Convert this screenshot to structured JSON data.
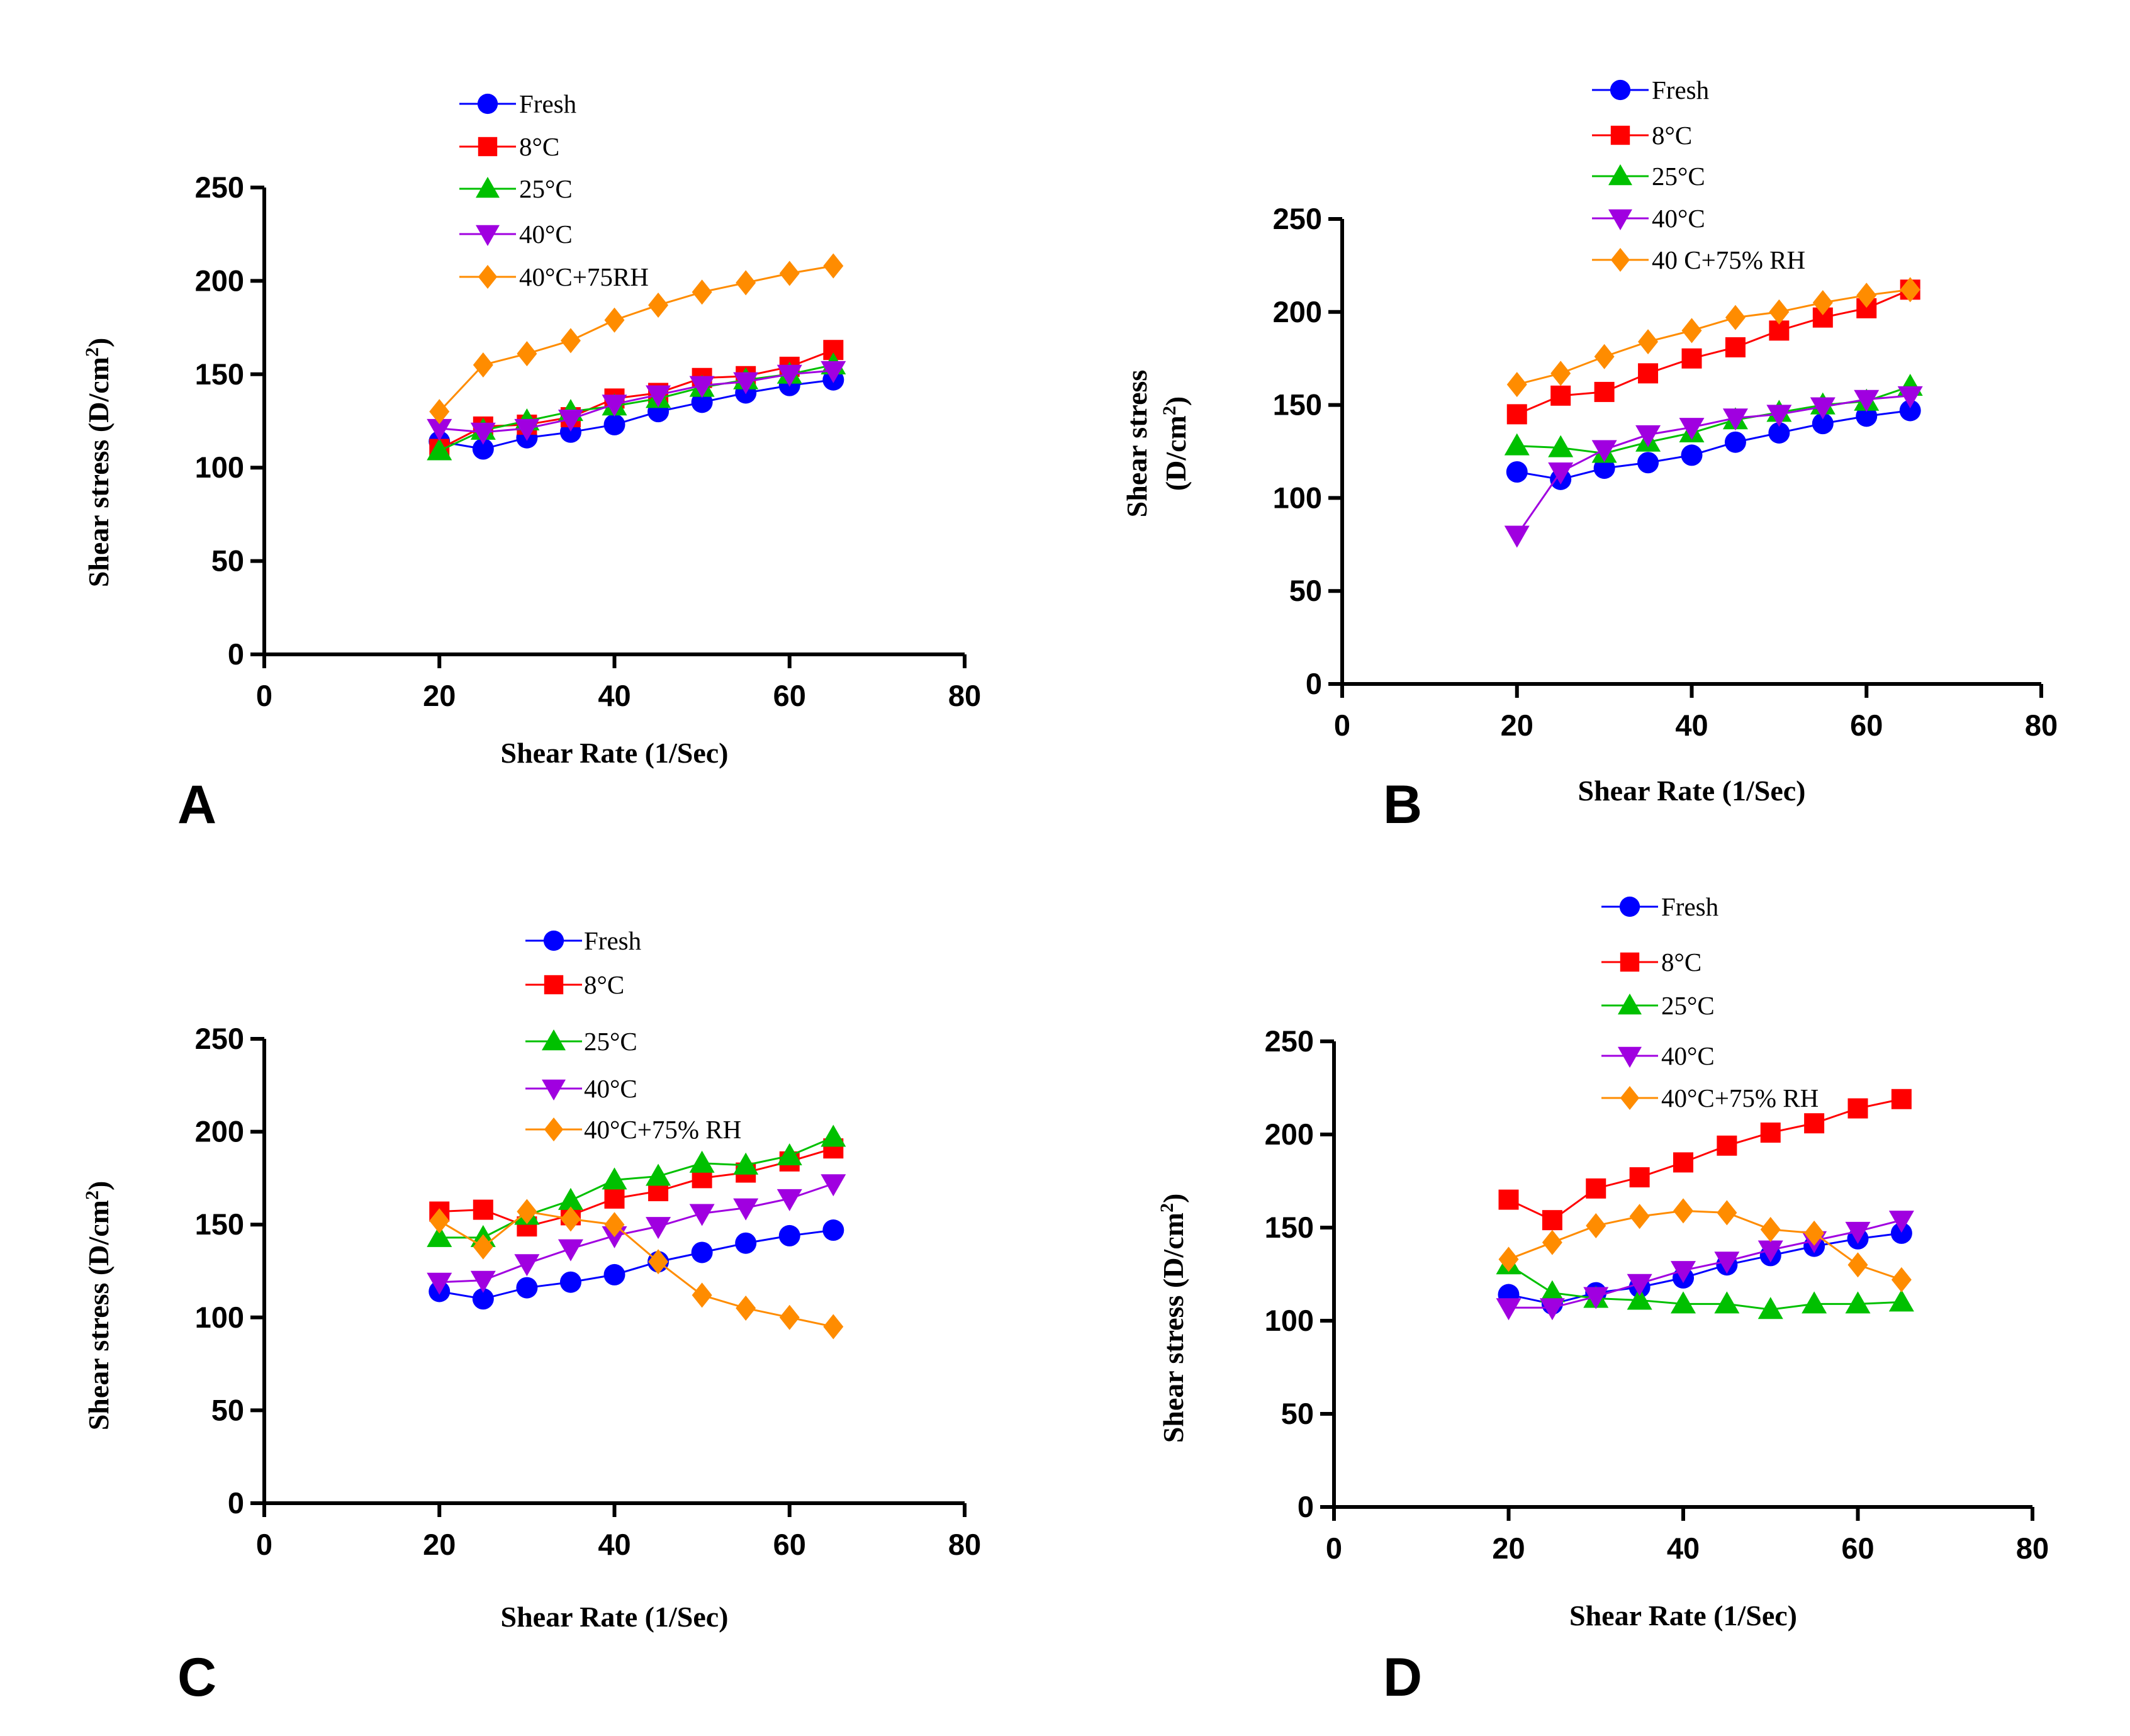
{
  "colors": {
    "Fresh": "#0000FF",
    "8C": "#FF0000",
    "25C": "#00C000",
    "40C": "#A000E0",
    "40C75RH": "#FF8C00"
  },
  "chart_data": [
    {
      "type": "line",
      "panel_label": "A",
      "xlabel": "Shear Rate (1/Sec)",
      "ylabel_main": "Shear stress (D/cm",
      "ylabel_sup": "2",
      "ylabel_close": ")",
      "xlim": [
        0,
        80
      ],
      "ylim": [
        0,
        250
      ],
      "xticks": [
        "0",
        "20",
        "40",
        "60",
        "80"
      ],
      "yticks": [
        "0",
        "50",
        "100",
        "150",
        "200",
        "250"
      ],
      "x": [
        20,
        25,
        30,
        35,
        40,
        45,
        50,
        55,
        60,
        65
      ],
      "series": [
        {
          "name": "Fresh",
          "key": "Fresh",
          "marker": "circle",
          "values": [
            114,
            110,
            116,
            119,
            123,
            130,
            135,
            140,
            144,
            147
          ]
        },
        {
          "name": "8°C",
          "key": "8C",
          "marker": "square",
          "values": [
            110,
            122,
            123,
            127,
            137,
            140,
            148,
            149,
            154,
            163
          ]
        },
        {
          "name": "25°C",
          "key": "25C",
          "marker": "triangle-up",
          "values": [
            109,
            120,
            125,
            130,
            133,
            137,
            143,
            147,
            150,
            155
          ]
        },
        {
          "name": "40°C",
          "key": "40C",
          "marker": "triangle-down",
          "values": [
            121,
            119,
            121,
            126,
            134,
            139,
            144,
            146,
            150,
            152
          ]
        },
        {
          "name": "40°C+75RH",
          "key": "40C75RH",
          "marker": "diamond",
          "values": [
            130,
            155,
            161,
            168,
            179,
            187,
            194,
            199,
            204,
            208
          ]
        }
      ]
    },
    {
      "type": "line",
      "panel_label": "B",
      "xlabel": "Shear Rate (1/Sec)",
      "ylabel_main": "Shear  stress",
      "ylabel_line2": "(D/cm",
      "ylabel_sup": "2",
      "ylabel_close": ")",
      "xlim": [
        0,
        80
      ],
      "ylim": [
        0,
        250
      ],
      "xticks": [
        "0",
        "20",
        "40",
        "60",
        "80"
      ],
      "yticks": [
        "0",
        "50",
        "100",
        "150",
        "200",
        "250"
      ],
      "x": [
        20,
        25,
        30,
        35,
        40,
        45,
        50,
        55,
        60,
        65
      ],
      "series": [
        {
          "name": "Fresh",
          "key": "Fresh",
          "marker": "circle",
          "values": [
            114,
            110,
            116,
            119,
            123,
            130,
            135,
            140,
            144,
            147
          ]
        },
        {
          "name": "8°C",
          "key": "8C",
          "marker": "square",
          "values": [
            145,
            155,
            157,
            167,
            175,
            181,
            190,
            197,
            202,
            212
          ]
        },
        {
          "name": "25°C",
          "key": "25C",
          "marker": "triangle-up",
          "values": [
            128,
            127,
            124,
            130,
            135,
            142,
            146,
            150,
            152,
            160
          ]
        },
        {
          "name": "40°C",
          "key": "40C",
          "marker": "triangle-down",
          "values": [
            80,
            114,
            126,
            134,
            138,
            143,
            145,
            149,
            153,
            155
          ]
        },
        {
          "name": "40 C+75% RH",
          "key": "40C75RH",
          "marker": "diamond",
          "values": [
            161,
            167,
            176,
            184,
            190,
            197,
            200,
            205,
            209,
            212
          ]
        }
      ]
    },
    {
      "type": "line",
      "panel_label": "C",
      "xlabel": "Shear Rate (1/Sec)",
      "ylabel_main": "Shear stress (D/cm",
      "ylabel_sup": "2",
      "ylabel_close": ")",
      "xlim": [
        0,
        80
      ],
      "ylim": [
        0,
        250
      ],
      "xticks": [
        "0",
        "20",
        "40",
        "60",
        "80"
      ],
      "yticks": [
        "0",
        "50",
        "100",
        "150",
        "200",
        "250"
      ],
      "x": [
        20,
        25,
        30,
        35,
        40,
        45,
        50,
        55,
        60,
        65
      ],
      "series": [
        {
          "name": "Fresh",
          "key": "Fresh",
          "marker": "circle",
          "values": [
            114,
            110,
            116,
            119,
            123,
            130,
            135,
            140,
            144,
            147
          ]
        },
        {
          "name": "8°C",
          "key": "8C",
          "marker": "square",
          "values": [
            157,
            158,
            149,
            155,
            164,
            168,
            175,
            178,
            184,
            191
          ]
        },
        {
          "name": "25°C",
          "key": "25C",
          "marker": "triangle-up",
          "values": [
            143,
            143,
            155,
            163,
            174,
            176,
            183,
            182,
            187,
            197
          ]
        },
        {
          "name": "40°C",
          "key": "40C",
          "marker": "triangle-down",
          "values": [
            119,
            120,
            129,
            137,
            144,
            149,
            156,
            159,
            164,
            172
          ]
        },
        {
          "name": "40°C+75% RH",
          "key": "40C75RH",
          "marker": "diamond",
          "values": [
            152,
            138,
            157,
            153,
            150,
            130,
            112,
            105,
            100,
            95
          ]
        }
      ]
    },
    {
      "type": "line",
      "panel_label": "D",
      "xlabel": "Shear Rate (1/Sec)",
      "ylabel_main": "Shear  stress (D/cm",
      "ylabel_sup": "2",
      "ylabel_close": ")",
      "xlim": [
        0,
        80
      ],
      "ylim": [
        0,
        250
      ],
      "xticks": [
        "0",
        "20",
        "40",
        "60",
        "80"
      ],
      "yticks": [
        "0",
        "50",
        "100",
        "150",
        "200",
        "250"
      ],
      "x": [
        20,
        25,
        30,
        35,
        40,
        45,
        50,
        55,
        60,
        65
      ],
      "series": [
        {
          "name": "Fresh",
          "key": "Fresh",
          "marker": "circle",
          "values": [
            114,
            109,
            115,
            118,
            123,
            130,
            135,
            140,
            144,
            147
          ]
        },
        {
          "name": "8°C",
          "key": "8C",
          "marker": "square",
          "values": [
            165,
            154,
            171,
            177,
            185,
            194,
            201,
            206,
            214,
            219
          ]
        },
        {
          "name": "25°C",
          "key": "25C",
          "marker": "triangle-up",
          "values": [
            130,
            115,
            112,
            111,
            109,
            109,
            106,
            109,
            109,
            110
          ]
        },
        {
          "name": "40°C",
          "key": "40C",
          "marker": "triangle-down",
          "values": [
            107,
            107,
            113,
            120,
            127,
            132,
            138,
            143,
            148,
            154
          ]
        },
        {
          "name": "40°C+75% RH",
          "key": "40C75RH",
          "marker": "diamond",
          "values": [
            133,
            142,
            151,
            156,
            159,
            158,
            149,
            147,
            130,
            122
          ]
        }
      ]
    }
  ]
}
